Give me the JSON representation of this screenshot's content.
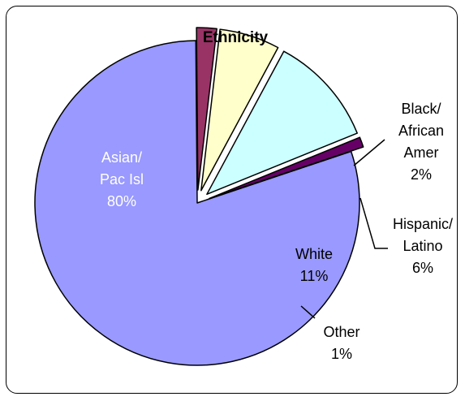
{
  "chart_data": {
    "type": "pie",
    "title": "Ethnicity",
    "slices": [
      {
        "label_lines": [
          "Asian/",
          "Pac Isl",
          "80%"
        ],
        "value": 80,
        "color": "#9999FF",
        "label_color": "#FFFFFF"
      },
      {
        "label_lines": [
          "Black/",
          "African",
          "Amer",
          "2%"
        ],
        "value": 2,
        "color": "#993366",
        "label_color": "#000000"
      },
      {
        "label_lines": [
          "Hispanic/",
          "Latino",
          "6%"
        ],
        "value": 6,
        "color": "#FFFFCC",
        "label_color": "#000000"
      },
      {
        "label_lines": [
          "White",
          "11%"
        ],
        "value": 11,
        "color": "#CCFFFF",
        "label_color": "#000000"
      },
      {
        "label_lines": [
          "Other",
          "1%"
        ],
        "value": 1,
        "color": "#660066",
        "label_color": "#000000"
      }
    ],
    "legend": "none",
    "outline_color": "#000000"
  }
}
